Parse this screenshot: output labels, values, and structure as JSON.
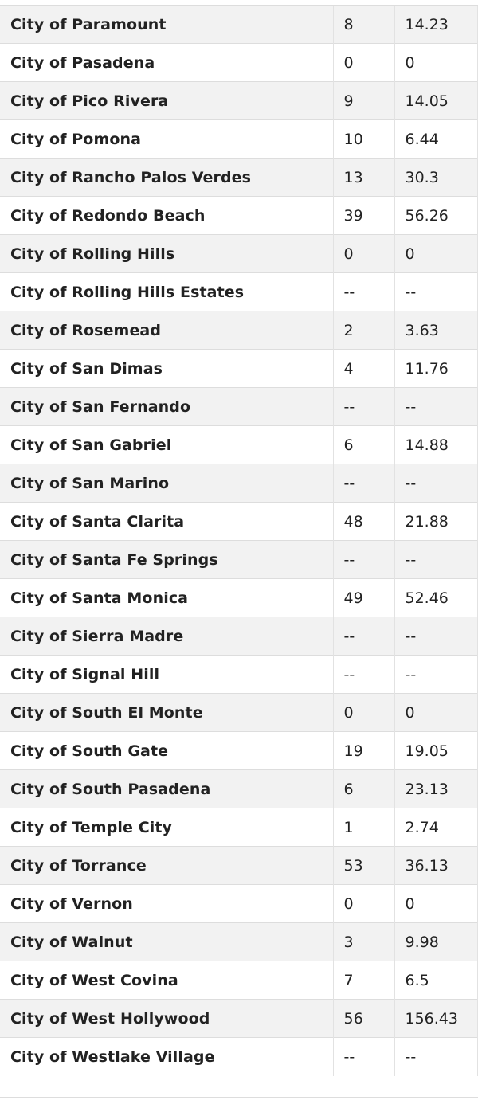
{
  "table": {
    "rows": [
      {
        "city": "City of Paramount",
        "value1": "8",
        "value2": "14.23"
      },
      {
        "city": "City of Pasadena",
        "value1": "0",
        "value2": "0"
      },
      {
        "city": "City of Pico Rivera",
        "value1": "9",
        "value2": "14.05"
      },
      {
        "city": "City of Pomona",
        "value1": "10",
        "value2": "6.44"
      },
      {
        "city": "City of Rancho Palos Verdes",
        "value1": "13",
        "value2": "30.3"
      },
      {
        "city": "City of Redondo Beach",
        "value1": "39",
        "value2": "56.26"
      },
      {
        "city": "City of Rolling Hills",
        "value1": "0",
        "value2": "0"
      },
      {
        "city": "City of Rolling Hills Estates",
        "value1": "--",
        "value2": "--"
      },
      {
        "city": "City of Rosemead",
        "value1": "2",
        "value2": "3.63"
      },
      {
        "city": "City of San Dimas",
        "value1": "4",
        "value2": "11.76"
      },
      {
        "city": "City of San Fernando",
        "value1": "--",
        "value2": "--"
      },
      {
        "city": "City of San Gabriel",
        "value1": "6",
        "value2": "14.88"
      },
      {
        "city": "City of San Marino",
        "value1": "--",
        "value2": "--"
      },
      {
        "city": "City of Santa Clarita",
        "value1": "48",
        "value2": "21.88"
      },
      {
        "city": "City of Santa Fe Springs",
        "value1": "--",
        "value2": "--"
      },
      {
        "city": "City of Santa Monica",
        "value1": "49",
        "value2": "52.46"
      },
      {
        "city": "City of Sierra Madre",
        "value1": "--",
        "value2": "--"
      },
      {
        "city": "City of Signal Hill",
        "value1": "--",
        "value2": "--"
      },
      {
        "city": "City of South El Monte",
        "value1": "0",
        "value2": "0"
      },
      {
        "city": "City of South Gate",
        "value1": "19",
        "value2": "19.05"
      },
      {
        "city": "City of South Pasadena",
        "value1": "6",
        "value2": "23.13"
      },
      {
        "city": "City of Temple City",
        "value1": "1",
        "value2": "2.74"
      },
      {
        "city": "City of Torrance",
        "value1": "53",
        "value2": "36.13"
      },
      {
        "city": "City of Vernon",
        "value1": "0",
        "value2": "0"
      },
      {
        "city": "City of Walnut",
        "value1": "3",
        "value2": "9.98"
      },
      {
        "city": "City of West Covina",
        "value1": "7",
        "value2": "6.5"
      },
      {
        "city": "City of West Hollywood",
        "value1": "56",
        "value2": "156.43"
      },
      {
        "city": "City of Westlake Village",
        "value1": "--",
        "value2": "--"
      }
    ]
  },
  "colors": {
    "stripe": "#f2f2f2",
    "background": "#ffffff",
    "border": "#dddddd",
    "text": "#222222"
  }
}
